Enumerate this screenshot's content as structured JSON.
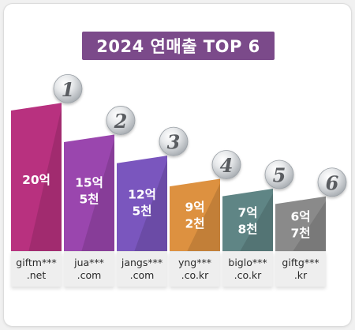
{
  "title": "2024 연매출 TOP 6",
  "chart_data": {
    "type": "bar",
    "title": "2024 연매출 TOP 6",
    "categories": [
      "giftm***.net",
      "jua***.com",
      "jangs***.com",
      "yng***.co.kr",
      "biglo***.co.kr",
      "giftg***.kr"
    ],
    "values": [
      20,
      15.5,
      12.5,
      9.2,
      7.8,
      6.7
    ],
    "ranks": [
      "1",
      "2",
      "3",
      "4",
      "5",
      "6"
    ],
    "value_labels": [
      [
        "20억"
      ],
      [
        "15억",
        "5천"
      ],
      [
        "12억",
        "5천"
      ],
      [
        "9억",
        "2천"
      ],
      [
        "7억",
        "8천"
      ],
      [
        "6억",
        "7천"
      ]
    ],
    "label_lines": [
      [
        "giftm***",
        ".net"
      ],
      [
        "jua***",
        ".com"
      ],
      [
        "jangs***",
        ".com"
      ],
      [
        "yng***",
        ".co.kr"
      ],
      [
        "biglo***",
        ".co.kr"
      ],
      [
        "giftg***",
        ".kr"
      ]
    ],
    "colors": [
      "#b8317f",
      "#9a46ae",
      "#7a56be",
      "#dd9140",
      "#5f8585",
      "#8a8a8a"
    ],
    "ylim": [
      0,
      22
    ]
  }
}
